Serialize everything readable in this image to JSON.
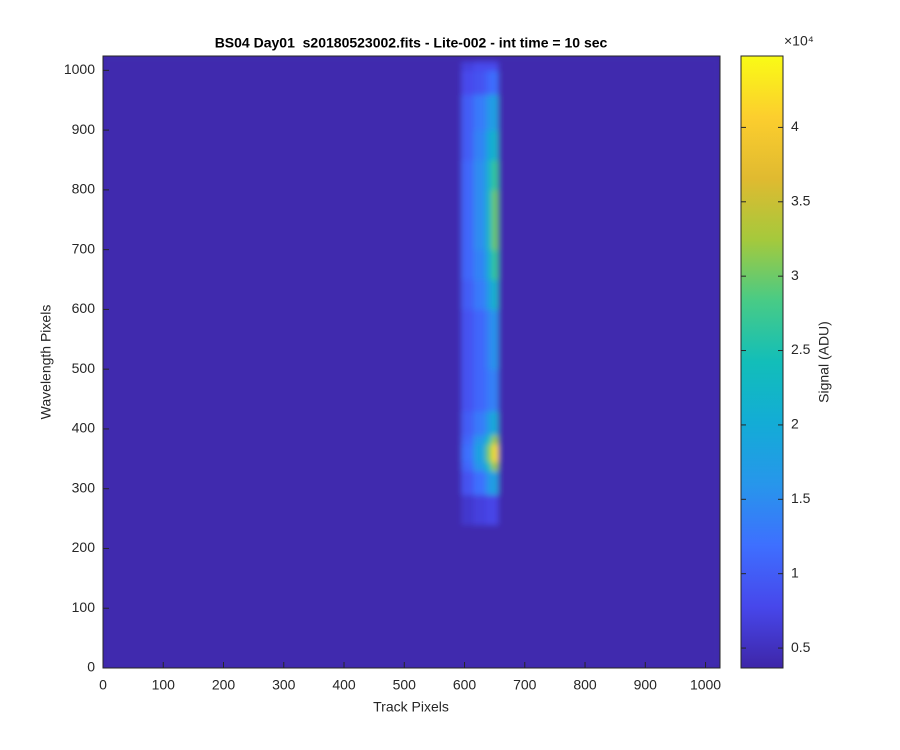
{
  "chart_data": {
    "type": "heatmap",
    "title": "BS04 Day01  s20180523002.fits - Lite-002 - int time = 10 sec",
    "xlabel": "Track Pixels",
    "ylabel": "Wavelength Pixels",
    "xlim": [
      0,
      1024
    ],
    "ylim": [
      0,
      1024
    ],
    "xticks": [
      0,
      100,
      200,
      300,
      400,
      500,
      600,
      700,
      800,
      900,
      1000
    ],
    "yticks": [
      0,
      100,
      200,
      300,
      400,
      500,
      600,
      700,
      800,
      900,
      1000
    ],
    "x_edges": [
      0,
      595,
      615,
      635,
      645,
      656,
      1024
    ],
    "y_edges": [
      0,
      240,
      290,
      330,
      345,
      375,
      390,
      430,
      500,
      600,
      650,
      700,
      800,
      850,
      900,
      960,
      1000,
      1015,
      1024
    ],
    "values": [
      [
        4000,
        4000,
        4000,
        4000,
        4000,
        4000
      ],
      [
        4000,
        6000,
        7000,
        7500,
        7500,
        4000
      ],
      [
        4000,
        9000,
        12000,
        16000,
        18000,
        4000
      ],
      [
        4000,
        11000,
        16000,
        24000,
        32000,
        4000
      ],
      [
        4000,
        12000,
        18000,
        30000,
        42000,
        4000
      ],
      [
        4000,
        11000,
        16000,
        24000,
        32000,
        4000
      ],
      [
        4000,
        10000,
        13000,
        17000,
        20000,
        4000
      ],
      [
        4000,
        9000,
        11000,
        13000,
        14000,
        4000
      ],
      [
        4000,
        9000,
        11000,
        14000,
        16000,
        4000
      ],
      [
        4000,
        10000,
        13000,
        17000,
        22000,
        4000
      ],
      [
        4000,
        11000,
        14000,
        20000,
        27000,
        4000
      ],
      [
        4000,
        11000,
        15000,
        22000,
        30000,
        4000
      ],
      [
        4000,
        11000,
        15000,
        21000,
        27000,
        4000
      ],
      [
        4000,
        10000,
        14000,
        19000,
        22000,
        4000
      ],
      [
        4000,
        10000,
        13000,
        16000,
        18000,
        4000
      ],
      [
        4000,
        8000,
        9000,
        11000,
        12000,
        4000
      ],
      [
        4000,
        7000,
        8000,
        8000,
        8000,
        4000
      ],
      [
        4000,
        4000,
        4000,
        4000,
        4000,
        4000
      ]
    ],
    "colormap": "parula",
    "clim": [
      3660,
      44800
    ],
    "colorbar_label": "Signal (ADU)",
    "colorbar_multiplier": "×10⁴",
    "colorbar_ticks": [
      {
        "value": 5000,
        "label": "0.5"
      },
      {
        "value": 10000,
        "label": "1"
      },
      {
        "value": 15000,
        "label": "1.5"
      },
      {
        "value": 20000,
        "label": "2"
      },
      {
        "value": 25000,
        "label": "2.5"
      },
      {
        "value": 30000,
        "label": "3"
      },
      {
        "value": 35000,
        "label": "3.5"
      },
      {
        "value": 40000,
        "label": "4"
      }
    ]
  }
}
